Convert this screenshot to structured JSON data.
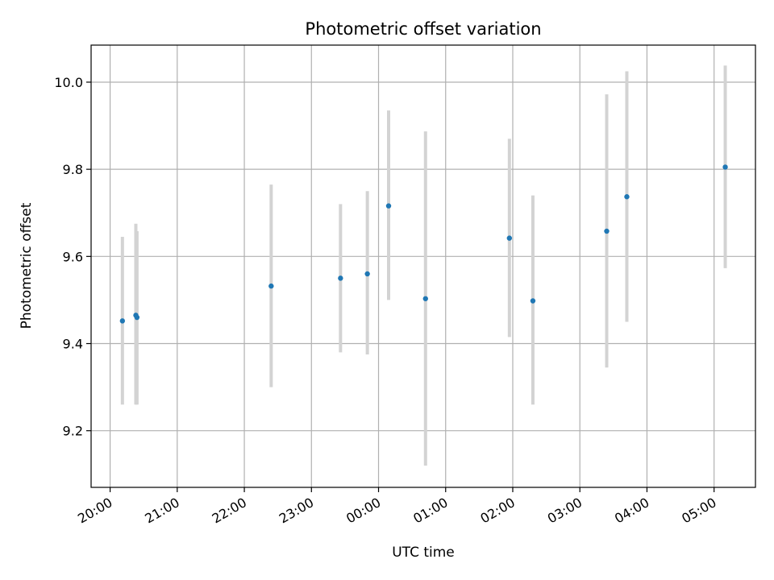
{
  "chart_data": {
    "type": "scatter",
    "title": "Photometric offset variation",
    "xlabel": "UTC time",
    "ylabel": "Photometric offset",
    "x_ticks": [
      "20:00",
      "21:00",
      "22:00",
      "23:00",
      "00:00",
      "01:00",
      "02:00",
      "03:00",
      "04:00",
      "05:00"
    ],
    "y_ticks": [
      "9.2",
      "9.4",
      "9.6",
      "9.8",
      "10.0"
    ],
    "xlim": [
      "19:43",
      "05:37"
    ],
    "ylim": [
      9.07,
      10.085
    ],
    "grid": true,
    "point_color": "#1f77b4",
    "errorbar_color": "#d3d3d3",
    "points": [
      {
        "x": "20:11",
        "y": 9.452,
        "low": 9.26,
        "high": 9.645
      },
      {
        "x": "20:23",
        "y": 9.465,
        "low": 9.26,
        "high": 9.675
      },
      {
        "x": "20:24",
        "y": 9.46,
        "low": 9.26,
        "high": 9.658
      },
      {
        "x": "22:24",
        "y": 9.532,
        "low": 9.3,
        "high": 9.765
      },
      {
        "x": "23:26",
        "y": 9.55,
        "low": 9.38,
        "high": 9.72
      },
      {
        "x": "23:50",
        "y": 9.56,
        "low": 9.375,
        "high": 9.75
      },
      {
        "x": "00:09",
        "y": 9.716,
        "low": 9.5,
        "high": 9.935
      },
      {
        "x": "00:42",
        "y": 9.503,
        "low": 9.12,
        "high": 9.887
      },
      {
        "x": "01:57",
        "y": 9.642,
        "low": 9.415,
        "high": 9.87
      },
      {
        "x": "02:18",
        "y": 9.498,
        "low": 9.26,
        "high": 9.74
      },
      {
        "x": "03:24",
        "y": 9.658,
        "low": 9.345,
        "high": 9.972
      },
      {
        "x": "03:42",
        "y": 9.737,
        "low": 9.45,
        "high": 10.025
      },
      {
        "x": "05:10",
        "y": 9.805,
        "low": 9.573,
        "high": 10.038
      }
    ]
  }
}
